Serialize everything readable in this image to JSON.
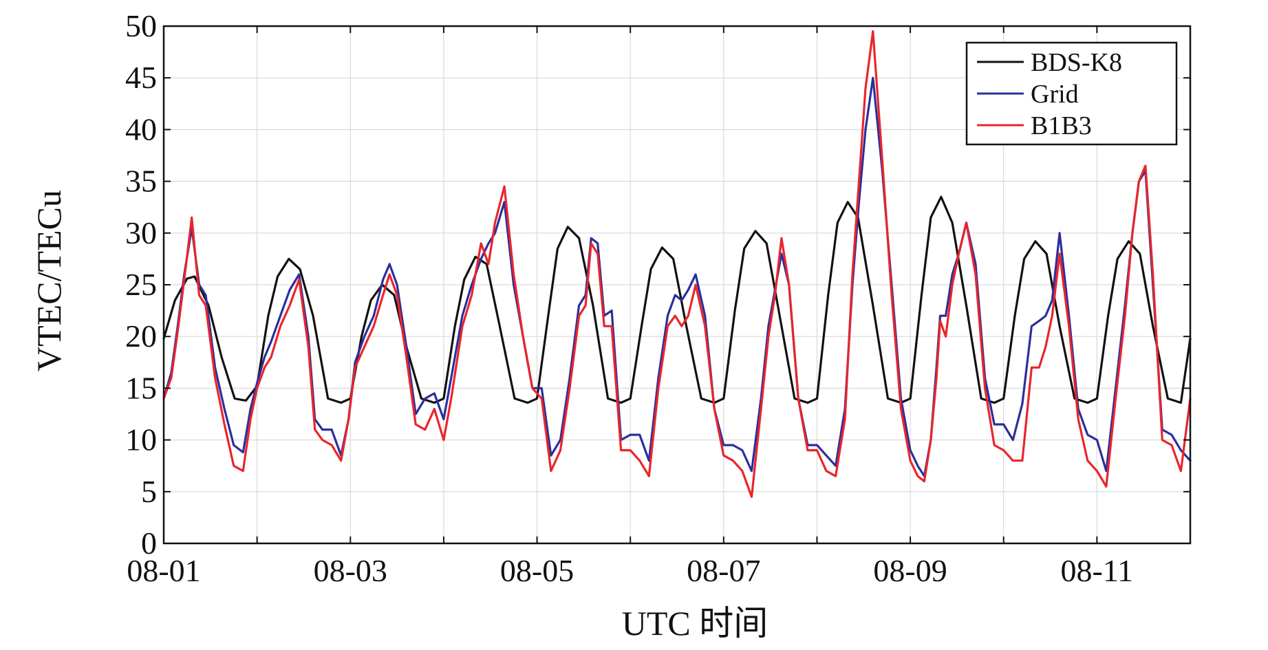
{
  "chart_data": {
    "type": "line",
    "xlabel": "UTC 时间",
    "ylabel": "VTEC/TECu",
    "xlim": [
      0,
      11
    ],
    "ylim": [
      0,
      50
    ],
    "x_unit": "days after 08-01 00:00 UTC",
    "x_ticks": [
      0,
      2,
      4,
      6,
      8,
      10
    ],
    "x_tick_labels": [
      "08-01",
      "08-03",
      "08-05",
      "08-07",
      "08-09",
      "08-11"
    ],
    "x_minor_ticks": [
      1,
      3,
      5,
      7,
      9
    ],
    "y_ticks": [
      0,
      5,
      10,
      15,
      20,
      25,
      30,
      35,
      40,
      45,
      50
    ],
    "y_tick_labels": [
      "0",
      "5",
      "10",
      "15",
      "20",
      "25",
      "30",
      "35",
      "40",
      "45",
      "50"
    ],
    "grid": true,
    "legend_position": "top-right",
    "series": [
      {
        "name": "BDS-K8",
        "color": "#111111",
        "x": [
          0,
          0.12,
          0.25,
          0.33,
          0.48,
          0.62,
          0.76,
          0.88,
          1.0,
          1.12,
          1.22,
          1.34,
          1.46,
          1.6,
          1.76,
          1.9,
          2.0,
          2.12,
          2.22,
          2.34,
          2.47,
          2.6,
          2.76,
          2.9,
          3.0,
          3.12,
          3.22,
          3.34,
          3.46,
          3.6,
          3.76,
          3.9,
          4.0,
          4.12,
          4.22,
          4.33,
          4.45,
          4.6,
          4.76,
          4.9,
          5.0,
          5.12,
          5.22,
          5.34,
          5.46,
          5.6,
          5.76,
          5.9,
          6.0,
          6.12,
          6.22,
          6.34,
          6.46,
          6.6,
          6.76,
          6.9,
          7.0,
          7.12,
          7.22,
          7.33,
          7.44,
          7.6,
          7.76,
          7.9,
          8.0,
          8.12,
          8.22,
          8.33,
          8.45,
          8.6,
          8.76,
          8.9,
          9.0,
          9.12,
          9.22,
          9.34,
          9.46,
          9.6,
          9.76,
          9.9,
          10.0,
          10.12,
          10.22,
          10.34,
          10.46,
          10.6,
          10.76,
          10.9,
          11.0
        ],
        "y": [
          19.8,
          23.5,
          25.6,
          25.8,
          23.0,
          18.0,
          14.0,
          13.8,
          15.2,
          22.0,
          25.8,
          27.5,
          26.5,
          22.0,
          14.0,
          13.6,
          14.0,
          20.0,
          23.5,
          25.0,
          24.0,
          19.0,
          14.0,
          13.6,
          14.0,
          21.0,
          25.5,
          27.7,
          27.0,
          21.0,
          14.0,
          13.6,
          14.0,
          22.0,
          28.5,
          30.6,
          29.5,
          23.0,
          14.0,
          13.6,
          14.0,
          21.0,
          26.5,
          28.6,
          27.5,
          21.0,
          14.0,
          13.6,
          14.0,
          22.5,
          28.5,
          30.2,
          29.0,
          22.0,
          14.0,
          13.6,
          14.0,
          24.0,
          31.0,
          33.0,
          31.5,
          23.0,
          14.0,
          13.6,
          14.0,
          24.0,
          31.5,
          33.5,
          31.0,
          23.0,
          14.0,
          13.6,
          14.0,
          22.0,
          27.5,
          29.2,
          28.0,
          21.0,
          14.0,
          13.6,
          14.0,
          22.0,
          27.5,
          29.2,
          28.0,
          21.0,
          14.0,
          13.6,
          19.8
        ]
      },
      {
        "name": "Grid",
        "color": "#2b2f9c",
        "x": [
          0,
          0.08,
          0.15,
          0.22,
          0.3,
          0.38,
          0.45,
          0.55,
          0.65,
          0.75,
          0.85,
          0.93,
          1.0,
          1.08,
          1.15,
          1.25,
          1.35,
          1.45,
          1.55,
          1.62,
          1.7,
          1.8,
          1.9,
          1.98,
          2.05,
          2.15,
          2.25,
          2.35,
          2.42,
          2.5,
          2.6,
          2.7,
          2.8,
          2.9,
          3.0,
          3.08,
          3.2,
          3.3,
          3.4,
          3.48,
          3.55,
          3.65,
          3.75,
          3.85,
          3.95,
          4.05,
          4.15,
          4.25,
          4.35,
          4.45,
          4.52,
          4.58,
          4.65,
          4.72,
          4.8,
          4.9,
          5.0,
          5.1,
          5.2,
          5.3,
          5.4,
          5.48,
          5.55,
          5.62,
          5.7,
          5.8,
          5.9,
          6.0,
          6.1,
          6.2,
          6.3,
          6.4,
          6.48,
          6.55,
          6.62,
          6.7,
          6.8,
          6.9,
          7.0,
          7.1,
          7.2,
          7.3,
          7.38,
          7.45,
          7.52,
          7.6,
          7.7,
          7.8,
          7.9,
          8.0,
          8.08,
          8.15,
          8.22,
          8.28,
          8.32,
          8.38,
          8.45,
          8.52,
          8.6,
          8.7,
          8.8,
          8.9,
          9.0,
          9.1,
          9.2,
          9.3,
          9.38,
          9.45,
          9.52,
          9.6,
          9.7,
          9.8,
          9.9,
          10.0,
          10.1,
          10.2,
          10.3,
          10.38,
          10.45,
          10.52,
          10.6,
          10.7,
          10.8,
          10.9,
          11.0
        ],
        "y": [
          14.0,
          16.5,
          21.0,
          26.0,
          30.5,
          25.0,
          24.0,
          17.0,
          13.0,
          9.5,
          8.8,
          13.0,
          15.5,
          18.0,
          19.5,
          22.0,
          24.5,
          26.0,
          20.0,
          12.0,
          11.0,
          11.0,
          8.5,
          12.0,
          17.5,
          20.0,
          22.0,
          25.5,
          27.0,
          25.0,
          19.0,
          12.5,
          14.0,
          14.5,
          12.0,
          16.0,
          22.0,
          25.0,
          27.5,
          29.0,
          30.0,
          33.0,
          25.0,
          20.0,
          15.0,
          15.0,
          8.5,
          10.0,
          16.0,
          23.0,
          24.0,
          29.5,
          29.0,
          22.0,
          22.5,
          10.0,
          10.5,
          10.5,
          8.0,
          16.0,
          22.0,
          24.0,
          23.5,
          24.5,
          26.0,
          22.0,
          13.0,
          9.5,
          9.5,
          9.0,
          7.0,
          14.0,
          21.0,
          24.5,
          28.0,
          25.0,
          14.0,
          9.5,
          9.5,
          8.5,
          7.5,
          13.0,
          25.0,
          33.0,
          40.0,
          45.0,
          36.0,
          25.0,
          14.0,
          9.0,
          7.5,
          6.5,
          10.0,
          17.0,
          22.0,
          22.0,
          26.0,
          28.0,
          31.0,
          27.0,
          16.0,
          11.5,
          11.5,
          10.0,
          13.5,
          21.0,
          21.5,
          22.0,
          23.5,
          30.0,
          22.0,
          13.0,
          10.5,
          10.0,
          7.0,
          15.0,
          23.0,
          30.0,
          35.0,
          36.0,
          25.0,
          11.0,
          10.5,
          9.0,
          8.0
        ]
      },
      {
        "name": "B1B3",
        "color": "#e8262b",
        "x": [
          0,
          0.08,
          0.15,
          0.22,
          0.3,
          0.38,
          0.45,
          0.55,
          0.65,
          0.75,
          0.85,
          0.93,
          1.0,
          1.08,
          1.15,
          1.25,
          1.35,
          1.45,
          1.55,
          1.62,
          1.7,
          1.8,
          1.9,
          1.98,
          2.05,
          2.15,
          2.25,
          2.35,
          2.42,
          2.5,
          2.6,
          2.7,
          2.8,
          2.9,
          3.0,
          3.08,
          3.2,
          3.3,
          3.4,
          3.48,
          3.55,
          3.65,
          3.75,
          3.85,
          3.95,
          4.05,
          4.15,
          4.25,
          4.35,
          4.45,
          4.52,
          4.58,
          4.65,
          4.72,
          4.8,
          4.9,
          5.0,
          5.1,
          5.2,
          5.3,
          5.4,
          5.48,
          5.55,
          5.62,
          5.7,
          5.8,
          5.9,
          6.0,
          6.1,
          6.2,
          6.3,
          6.4,
          6.48,
          6.55,
          6.62,
          6.7,
          6.8,
          6.9,
          7.0,
          7.1,
          7.2,
          7.3,
          7.38,
          7.45,
          7.52,
          7.6,
          7.7,
          7.8,
          7.9,
          8.0,
          8.08,
          8.15,
          8.22,
          8.28,
          8.32,
          8.38,
          8.45,
          8.52,
          8.6,
          8.7,
          8.8,
          8.9,
          9.0,
          9.1,
          9.2,
          9.3,
          9.38,
          9.45,
          9.52,
          9.6,
          9.7,
          9.8,
          9.9,
          10.0,
          10.1,
          10.2,
          10.3,
          10.38,
          10.45,
          10.52,
          10.6,
          10.7,
          10.8,
          10.9,
          11.0
        ],
        "y": [
          14.0,
          16.0,
          20.5,
          25.5,
          31.5,
          24.0,
          23.0,
          16.0,
          11.5,
          7.5,
          7.0,
          12.0,
          15.0,
          17.0,
          18.0,
          21.0,
          23.0,
          25.5,
          19.0,
          11.0,
          10.0,
          9.5,
          8.0,
          12.0,
          17.0,
          19.0,
          21.0,
          24.0,
          26.0,
          24.0,
          18.0,
          11.5,
          11.0,
          13.0,
          10.0,
          14.0,
          21.0,
          24.0,
          29.0,
          27.0,
          31.0,
          34.5,
          26.0,
          20.0,
          15.0,
          14.0,
          7.0,
          9.0,
          15.0,
          22.0,
          23.0,
          29.0,
          28.0,
          21.0,
          21.0,
          9.0,
          9.0,
          8.0,
          6.5,
          15.0,
          21.0,
          22.0,
          21.0,
          22.0,
          25.0,
          21.0,
          13.0,
          8.5,
          8.0,
          7.0,
          4.5,
          13.0,
          20.0,
          24.0,
          29.5,
          25.0,
          14.0,
          9.0,
          9.0,
          7.0,
          6.5,
          12.0,
          26.0,
          35.0,
          44.0,
          49.5,
          37.0,
          24.0,
          13.0,
          8.0,
          6.5,
          6.0,
          10.0,
          16.0,
          21.5,
          20.0,
          25.0,
          28.0,
          31.0,
          26.0,
          15.0,
          9.5,
          9.0,
          8.0,
          8.0,
          17.0,
          17.0,
          19.0,
          22.0,
          28.0,
          21.0,
          12.0,
          8.0,
          7.0,
          5.5,
          14.0,
          22.0,
          30.0,
          35.0,
          36.5,
          26.0,
          10.0,
          9.5,
          7.0,
          14.0
        ]
      }
    ]
  }
}
